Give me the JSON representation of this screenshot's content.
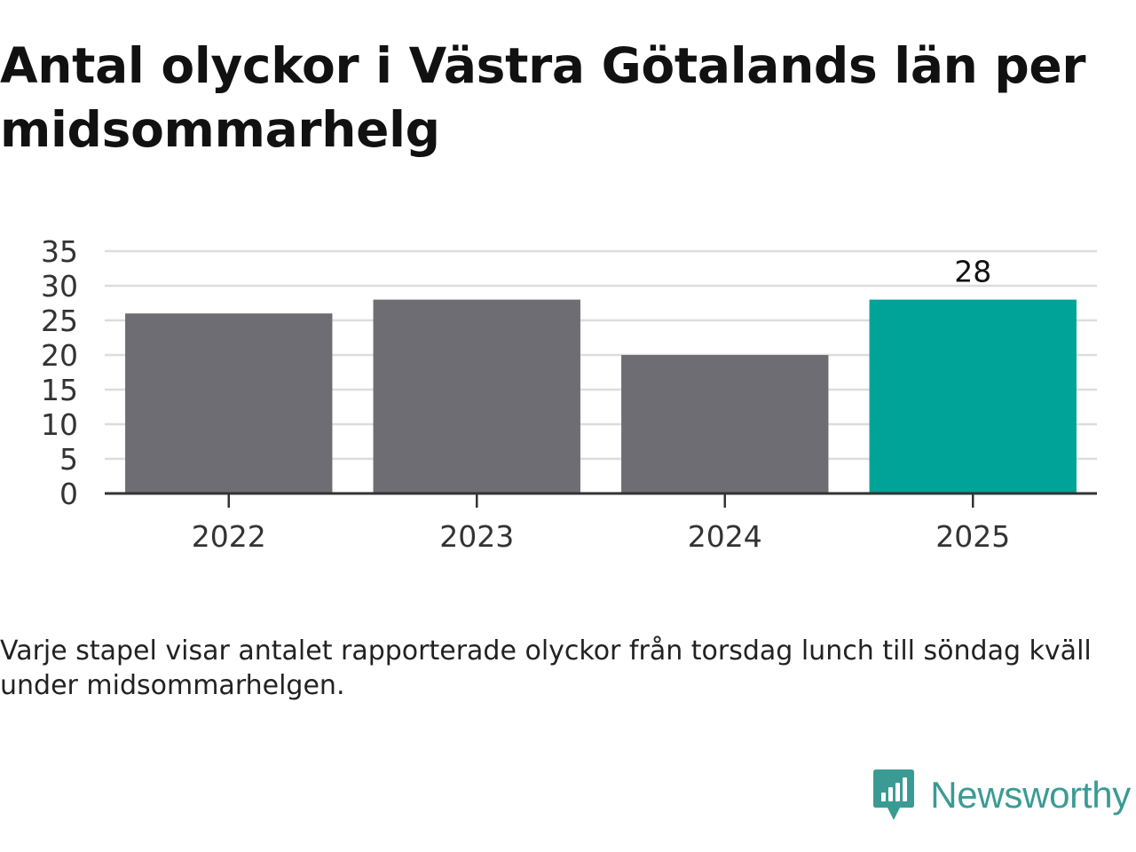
{
  "title": "Antal olyckor i Västra Götalands län per midsommarhelg",
  "note": "Varje stapel visar antalet rapporterade olyckor från torsdag lunch till söndag kväll under midsommarhelgen.",
  "brand": {
    "name": "Newsworthy",
    "icon": "newsworthy-logo-icon",
    "color": "#3a9b94"
  },
  "colors": {
    "bar": "#6e6d74",
    "highlight": "#00a398",
    "grid": "#dddddd",
    "axis": "#333333"
  },
  "chart_data": {
    "type": "bar",
    "title": "Antal olyckor i Västra Götalands län per midsommarhelg",
    "xlabel": "",
    "ylabel": "",
    "categories": [
      "2022",
      "2023",
      "2024",
      "2025"
    ],
    "values": [
      26,
      28,
      20,
      28
    ],
    "highlight_index": 3,
    "data_labels": [
      null,
      null,
      null,
      "28"
    ],
    "ylim": [
      0,
      35
    ],
    "yticks": [
      0,
      5,
      10,
      15,
      20,
      25,
      30,
      35
    ],
    "grid": true,
    "legend": "none"
  }
}
